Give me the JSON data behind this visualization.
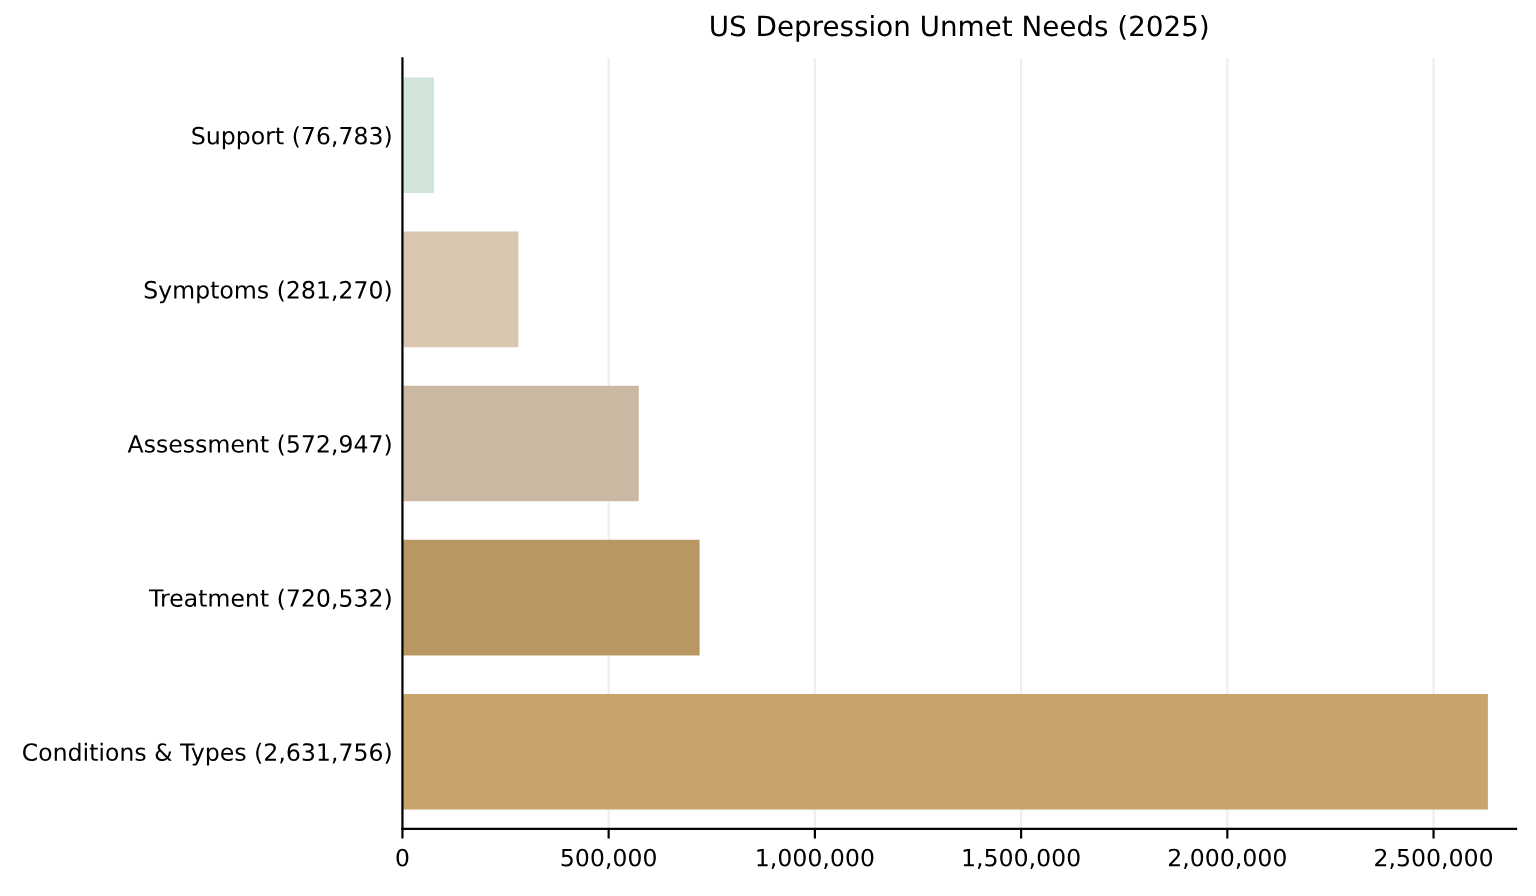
{
  "chart_data": {
    "type": "bar",
    "orientation": "horizontal",
    "title": "US Depression Unmet Needs (2025)",
    "categories": [
      "Support (76,783)",
      "Symptoms (281,270)",
      "Assessment (572,947)",
      "Treatment (720,532)",
      "Conditions & Types (2,631,756)"
    ],
    "values": [
      76783,
      281270,
      572947,
      720532,
      2631756
    ],
    "colors": [
      "#d1e5d9",
      "#d9c6ae",
      "#cbb8a2",
      "#b99763",
      "#c8a46c"
    ],
    "xlim": [
      0,
      2700000
    ],
    "xticks": [
      {
        "value": 0,
        "label": "0"
      },
      {
        "value": 500000,
        "label": "500,000"
      },
      {
        "value": 1000000,
        "label": "1,000,000"
      },
      {
        "value": 1500000,
        "label": "1,500,000"
      },
      {
        "value": 2000000,
        "label": "2,000,000"
      },
      {
        "value": 2500000,
        "label": "2,500,000"
      }
    ],
    "grid": "x"
  }
}
